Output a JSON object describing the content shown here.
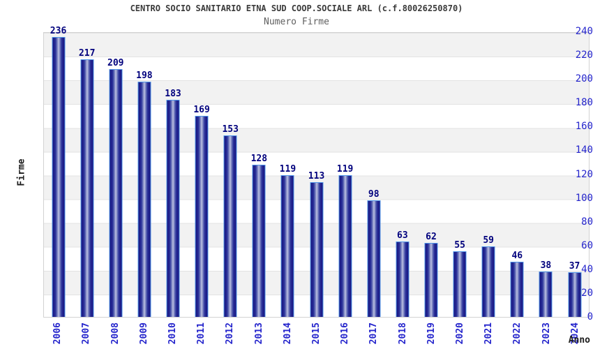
{
  "header": {
    "title": "CENTRO SOCIO SANITARIO ETNA SUD COOP.SOCIALE ARL (c.f.80026250870)",
    "subtitle": "Numero Firme"
  },
  "chart_data": {
    "type": "bar",
    "title": "CENTRO SOCIO SANITARIO ETNA SUD COOP.SOCIALE ARL (c.f.80026250870)",
    "subtitle": "Numero Firme",
    "xlabel": "Anno",
    "ylabel": "Firme",
    "categories": [
      "2006",
      "2007",
      "2008",
      "2009",
      "2010",
      "2011",
      "2012",
      "2013",
      "2014",
      "2015",
      "2016",
      "2017",
      "2018",
      "2019",
      "2020",
      "2021",
      "2022",
      "2023",
      "2024"
    ],
    "values": [
      236,
      217,
      209,
      198,
      183,
      169,
      153,
      128,
      119,
      113,
      119,
      98,
      63,
      62,
      55,
      59,
      46,
      38,
      37
    ],
    "ylim": [
      0,
      240
    ],
    "yticks": [
      0,
      20,
      40,
      60,
      80,
      100,
      120,
      140,
      160,
      180,
      200,
      220,
      240
    ],
    "grid": "horizontal gridlines with alternating gray/white bands every 20 units",
    "legend": "none",
    "colors": {
      "bar_edge_dark": "#17177e",
      "bar_center_light": "#bdc2e2",
      "bar_border": "#4f94e8",
      "value_label": "#00007d",
      "tick_label": "#2525cc",
      "band_gray": "#f2f2f2",
      "band_white": "#ffffff",
      "grid_line": "#e3e3e3",
      "title_color": "#3a3a3a",
      "subtitle_color": "#5f5f5f",
      "axis_title_color": "#1c1c1c"
    }
  }
}
